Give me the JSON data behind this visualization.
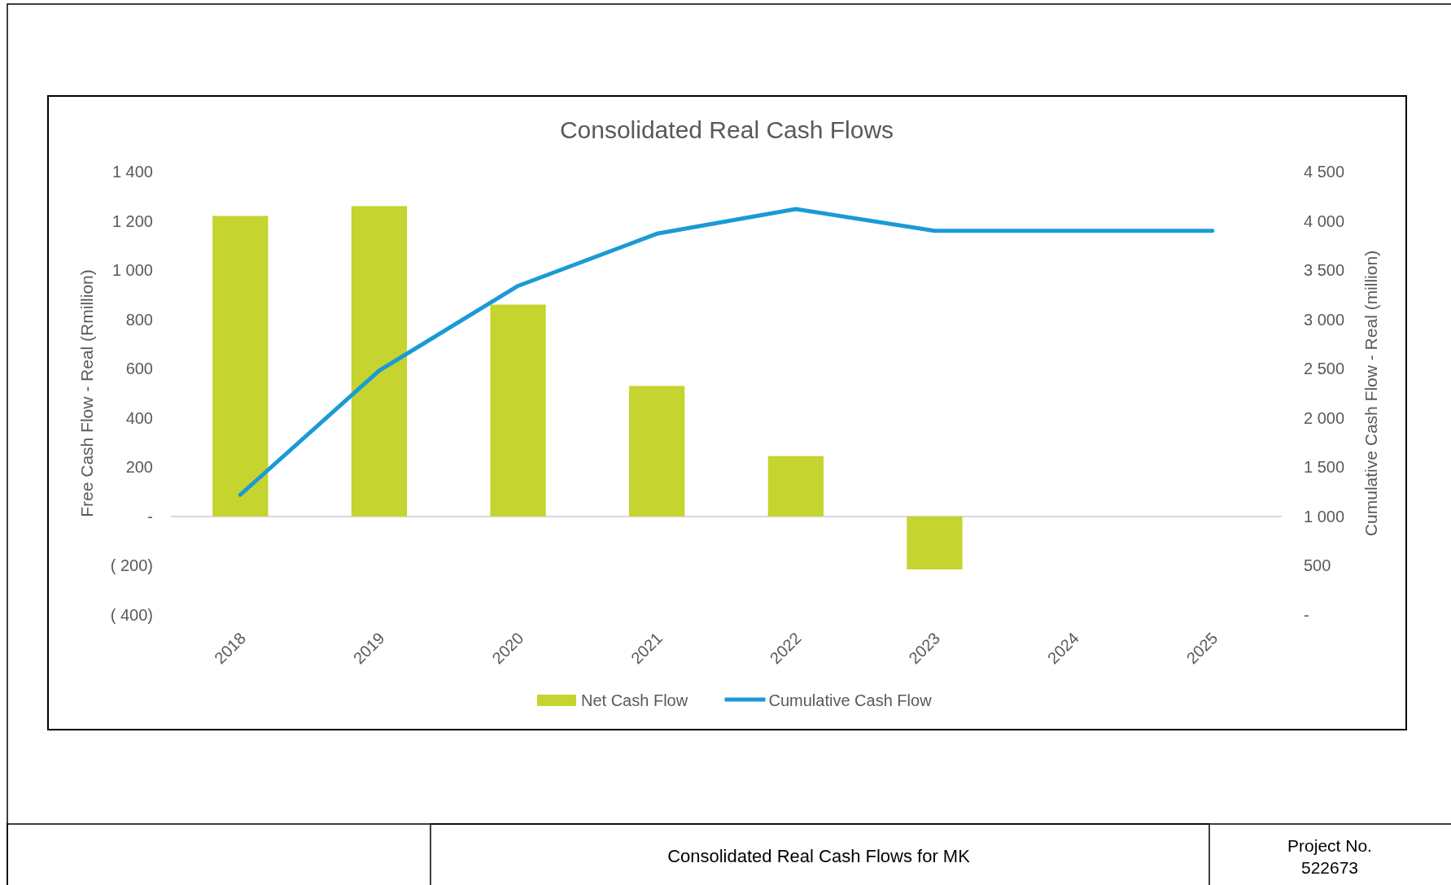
{
  "chart_data": {
    "type": "bar",
    "title": "Consolidated Real Cash Flows",
    "ylabel": "Free Cash Flow - Real (Rmillion)",
    "y2label": "Cumulative Cash Flow - Real (million)",
    "categories": [
      "2018",
      "2019",
      "2020",
      "2021",
      "2022",
      "2023",
      "2024",
      "2025"
    ],
    "series": [
      {
        "name": "Net Cash Flow",
        "color": "#c5d42e",
        "values": [
          1220,
          1260,
          860,
          530,
          245,
          -215,
          null,
          null
        ]
      },
      {
        "name": "Cumulative Cash Flow",
        "type": "line",
        "axis": "y2",
        "color": "#1a9ad6",
        "values": [
          1220,
          2480,
          3340,
          3870,
          4120,
          3900,
          3900,
          3900
        ]
      }
    ],
    "ylim": [
      -400,
      1400
    ],
    "yticks": [
      {
        "value": -400,
        "label": "( 400)"
      },
      {
        "value": -200,
        "label": "( 200)"
      },
      {
        "value": 0,
        "label": "-"
      },
      {
        "value": 200,
        "label": "200"
      },
      {
        "value": 400,
        "label": "400"
      },
      {
        "value": 600,
        "label": "600"
      },
      {
        "value": 800,
        "label": "800"
      },
      {
        "value": 1000,
        "label": "1 000"
      },
      {
        "value": 1200,
        "label": "1 200"
      },
      {
        "value": 1400,
        "label": "1 400"
      }
    ],
    "y2lim": [
      0,
      4500
    ],
    "y2ticks": [
      {
        "value": 0,
        "label": "-"
      },
      {
        "value": 500,
        "label": "500"
      },
      {
        "value": 1000,
        "label": "1 000"
      },
      {
        "value": 1500,
        "label": "1 500"
      },
      {
        "value": 2000,
        "label": "2 000"
      },
      {
        "value": 2500,
        "label": "2 500"
      },
      {
        "value": 3000,
        "label": "3 000"
      },
      {
        "value": 3500,
        "label": "3 500"
      },
      {
        "value": 4000,
        "label": "4 000"
      },
      {
        "value": 4500,
        "label": "4 500"
      }
    ],
    "legend": "bottom",
    "annotations": [
      "Consolidated Real Cash Flows for MK",
      "Project No.",
      "522673"
    ]
  }
}
